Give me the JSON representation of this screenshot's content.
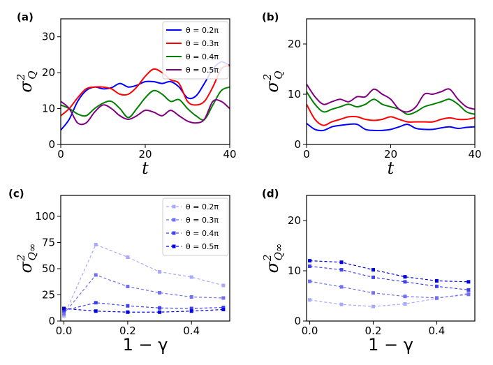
{
  "chart_data": [
    {
      "panel": "(a)",
      "type": "line",
      "xlabel": "t",
      "ylabel": "σ",
      "ylabel_sub": "Q",
      "ylabel_sup": "2",
      "xlim": [
        0,
        40
      ],
      "ylim": [
        0,
        35
      ],
      "xticks": [
        "0",
        "20",
        "40"
      ],
      "yticks": [
        "0",
        "10",
        "20",
        "30"
      ],
      "legend": "top-right",
      "series": [
        {
          "name": "θ = 0.2π",
          "color": "#0000ff",
          "x": [
            0,
            2,
            4,
            6,
            8,
            10,
            12,
            14,
            16,
            18,
            20,
            22,
            24,
            26,
            28,
            30,
            32,
            34,
            36,
            38,
            40
          ],
          "y": [
            4,
            7,
            12,
            15,
            16,
            15.5,
            15.8,
            17,
            16,
            16.5,
            17.5,
            17.5,
            17,
            17.5,
            16,
            13,
            13.5,
            17,
            21,
            23,
            22
          ]
        },
        {
          "name": "θ = 0.3π",
          "color": "#ff0000",
          "x": [
            0,
            2,
            4,
            6,
            8,
            10,
            12,
            14,
            16,
            18,
            20,
            22,
            24,
            26,
            28,
            30,
            32,
            34,
            36,
            38,
            40
          ],
          "y": [
            8,
            10,
            13,
            15.5,
            16,
            16,
            15.5,
            14,
            14,
            16,
            19,
            21,
            20,
            18,
            17,
            12,
            11,
            12,
            16,
            21,
            22
          ]
        },
        {
          "name": "θ = 0.4π",
          "color": "#008000",
          "x": [
            0,
            2,
            4,
            6,
            8,
            10,
            12,
            14,
            16,
            18,
            20,
            22,
            24,
            26,
            28,
            30,
            32,
            34,
            36,
            38,
            40
          ],
          "y": [
            11,
            10,
            8.5,
            8,
            10,
            11.5,
            12,
            10,
            7.5,
            10,
            13,
            15,
            14,
            12,
            12.5,
            10,
            8,
            7,
            11,
            15,
            16
          ]
        },
        {
          "name": "θ = 0.5π",
          "color": "#800080",
          "x": [
            0,
            2,
            4,
            6,
            8,
            10,
            12,
            14,
            16,
            18,
            20,
            22,
            24,
            26,
            28,
            30,
            32,
            34,
            36,
            38,
            40
          ],
          "y": [
            12,
            10,
            6,
            6,
            9,
            11,
            10,
            8,
            7,
            8,
            9.5,
            9,
            8,
            9.5,
            8,
            6.5,
            6,
            7,
            12,
            12,
            10
          ]
        }
      ]
    },
    {
      "panel": "(b)",
      "type": "line",
      "xlabel": "t",
      "ylabel": "σ",
      "ylabel_sub": "Q",
      "ylabel_sup": "2",
      "xlim": [
        0,
        40
      ],
      "ylim": [
        0,
        25
      ],
      "xticks": [
        "0",
        "20",
        "40"
      ],
      "yticks": [
        "0",
        "10",
        "20"
      ],
      "series": [
        {
          "name": "θ = 0.2π",
          "color": "#0000ff",
          "x": [
            0,
            2,
            4,
            6,
            8,
            10,
            12,
            14,
            16,
            18,
            20,
            22,
            24,
            26,
            28,
            30,
            32,
            34,
            36,
            38,
            40
          ],
          "y": [
            4.2,
            3,
            2.8,
            3.5,
            3.8,
            4,
            4,
            3,
            2.8,
            2.8,
            3,
            3.5,
            4,
            3.2,
            3,
            3,
            3.3,
            3.5,
            3.2,
            3.4,
            3.5
          ]
        },
        {
          "name": "θ = 0.3π",
          "color": "#ff0000",
          "x": [
            0,
            2,
            4,
            6,
            8,
            10,
            12,
            14,
            16,
            18,
            20,
            22,
            24,
            26,
            28,
            30,
            32,
            34,
            36,
            38,
            40
          ],
          "y": [
            8,
            5,
            3.8,
            4.5,
            5,
            5.5,
            5.5,
            5,
            4.8,
            5,
            5.5,
            5,
            4.5,
            4.5,
            4.5,
            4.5,
            5,
            5.3,
            5,
            5,
            5.3
          ]
        },
        {
          "name": "θ = 0.4π",
          "color": "#008000",
          "x": [
            0,
            2,
            4,
            6,
            8,
            10,
            12,
            14,
            16,
            18,
            20,
            22,
            24,
            26,
            28,
            30,
            32,
            34,
            36,
            38,
            40
          ],
          "y": [
            10.5,
            8,
            6.5,
            7,
            7.5,
            8,
            7.5,
            8,
            9,
            8,
            7.5,
            7,
            6,
            6.5,
            7.5,
            8,
            8.5,
            9,
            8,
            6.5,
            6
          ]
        },
        {
          "name": "θ = 0.5π",
          "color": "#800080",
          "x": [
            0,
            2,
            4,
            6,
            8,
            10,
            12,
            14,
            16,
            18,
            20,
            22,
            24,
            26,
            28,
            30,
            32,
            34,
            36,
            38,
            40
          ],
          "y": [
            12,
            9.5,
            8,
            8.5,
            9,
            8.5,
            9.5,
            9.5,
            11,
            10,
            9,
            7,
            6.5,
            7.5,
            10,
            10,
            10.5,
            11,
            9,
            7.5,
            7
          ]
        }
      ]
    },
    {
      "panel": "(c)",
      "type": "line",
      "xlabel": "1 − γ",
      "ylabel": "σ",
      "ylabel_sub": "Q∞",
      "ylabel_sup": "2",
      "xlim": [
        -0.01,
        0.52
      ],
      "ylim": [
        0,
        120
      ],
      "xticks": [
        "0.0",
        "0.2",
        "0.4"
      ],
      "yticks": [
        "0",
        "25",
        "50",
        "75",
        "100"
      ],
      "legend": "top-right",
      "x": [
        0,
        0.1,
        0.2,
        0.3,
        0.4,
        0.5
      ],
      "series": [
        {
          "name": "θ = 0.2π",
          "color": "#a8a8ff",
          "values": [
            5,
            73,
            61,
            47,
            42,
            34
          ]
        },
        {
          "name": "θ = 0.3π",
          "color": "#7070f0",
          "values": [
            7,
            44,
            33,
            27,
            23,
            22
          ]
        },
        {
          "name": "θ = 0.4π",
          "color": "#4040f0",
          "values": [
            10,
            17.5,
            14.5,
            12.5,
            12,
            13
          ]
        },
        {
          "name": "θ = 0.5π",
          "color": "#0000e0",
          "values": [
            12,
            9.5,
            8.5,
            8.5,
            9.5,
            11
          ]
        }
      ]
    },
    {
      "panel": "(d)",
      "type": "line",
      "xlabel": "1 − γ",
      "ylabel": "σ",
      "ylabel_sub": "Q∞",
      "ylabel_sup": "2",
      "xlim": [
        -0.01,
        0.52
      ],
      "ylim": [
        0,
        25
      ],
      "xticks": [
        "0.0",
        "0.2",
        "0.4"
      ],
      "yticks": [
        "0",
        "10",
        "20"
      ],
      "x": [
        0,
        0.1,
        0.2,
        0.3,
        0.4,
        0.5
      ],
      "series": [
        {
          "name": "θ = 0.2π",
          "color": "#a8a8ff",
          "values": [
            4.2,
            3.3,
            2.9,
            3.4,
            4.5,
            5.5
          ]
        },
        {
          "name": "θ = 0.3π",
          "color": "#7070f0",
          "values": [
            7.9,
            6.8,
            5.6,
            4.9,
            4.6,
            5.3
          ]
        },
        {
          "name": "θ = 0.4π",
          "color": "#4040f0",
          "values": [
            10.9,
            10.2,
            8.7,
            7.8,
            6.9,
            6.2
          ]
        },
        {
          "name": "θ = 0.5π",
          "color": "#0000e0",
          "values": [
            12.0,
            11.7,
            10.2,
            8.8,
            8.0,
            7.8
          ]
        }
      ]
    }
  ]
}
